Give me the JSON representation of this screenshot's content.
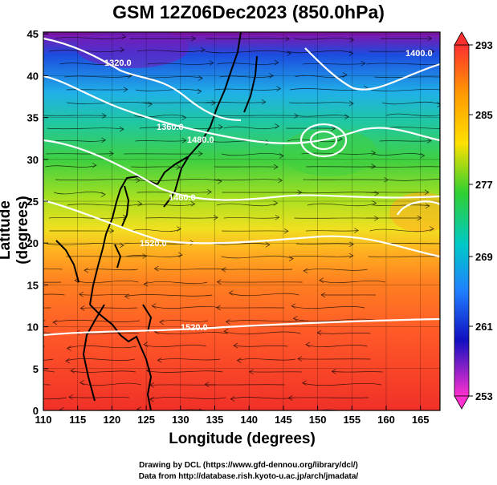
{
  "title": "GSM 12Z06Dec2023 (850.0hPa)",
  "x_axis": {
    "label": "Longitude (degrees)",
    "ticks": [
      "110",
      "115",
      "120",
      "125",
      "130",
      "135",
      "140",
      "145",
      "150",
      "155",
      "160",
      "165"
    ]
  },
  "y_axis": {
    "label": "Latitude  (degrees)",
    "ticks": [
      "0",
      "5",
      "10",
      "15",
      "20",
      "25",
      "30",
      "35",
      "40",
      "45"
    ]
  },
  "colorbar": {
    "labels": [
      "293",
      "285",
      "277",
      "269",
      "261",
      "253"
    ],
    "colors": [
      "#ff3030",
      "#ff9a00",
      "#ffe000",
      "#30d030",
      "#00c8c8",
      "#2080ff",
      "#1010c0",
      "#ff30d0"
    ]
  },
  "contour_labels": [
    "1320.0",
    "1360.0",
    "1480.0",
    "1460.0",
    "1520.0",
    "1520.0",
    "1400.0"
  ],
  "credits": {
    "line1": "Drawing by DCL (https://www.gfd-dennou.org/library/dcl/)",
    "line2": "Data from http://database.rish.kyoto-u.ac.jp/arch/jmadata/"
  }
}
